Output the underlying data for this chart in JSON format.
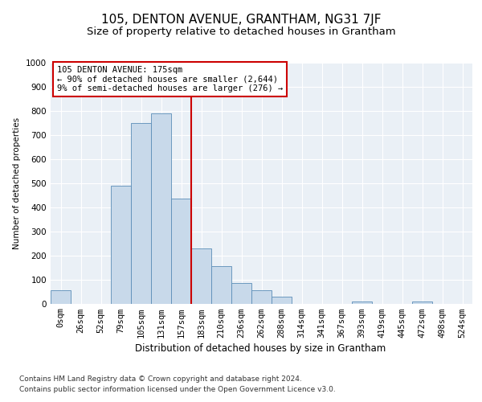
{
  "title": "105, DENTON AVENUE, GRANTHAM, NG31 7JF",
  "subtitle": "Size of property relative to detached houses in Grantham",
  "xlabel": "Distribution of detached houses by size in Grantham",
  "ylabel": "Number of detached properties",
  "footer_line1": "Contains HM Land Registry data © Crown copyright and database right 2024.",
  "footer_line2": "Contains public sector information licensed under the Open Government Licence v3.0.",
  "bin_labels": [
    "0sqm",
    "26sqm",
    "52sqm",
    "79sqm",
    "105sqm",
    "131sqm",
    "157sqm",
    "183sqm",
    "210sqm",
    "236sqm",
    "262sqm",
    "288sqm",
    "314sqm",
    "341sqm",
    "367sqm",
    "393sqm",
    "419sqm",
    "445sqm",
    "472sqm",
    "498sqm",
    "524sqm"
  ],
  "bar_values": [
    55,
    0,
    0,
    490,
    750,
    790,
    435,
    230,
    155,
    85,
    55,
    30,
    0,
    0,
    0,
    10,
    0,
    0,
    10,
    0,
    0
  ],
  "bar_color": "#c8d9ea",
  "bar_edge_color": "#5b8db8",
  "vline_bin_index": 7,
  "vline_color": "#cc0000",
  "vline_label_title": "105 DENTON AVENUE: 175sqm",
  "vline_label_line1": "← 90% of detached houses are smaller (2,644)",
  "vline_label_line2": "9% of semi-detached houses are larger (276) →",
  "annotation_box_color": "#cc0000",
  "ylim": [
    0,
    1000
  ],
  "yticks": [
    0,
    100,
    200,
    300,
    400,
    500,
    600,
    700,
    800,
    900,
    1000
  ],
  "background_color": "#eaf0f6",
  "grid_color": "#ffffff",
  "title_fontsize": 11,
  "subtitle_fontsize": 9.5,
  "xlabel_fontsize": 8.5,
  "ylabel_fontsize": 7.5,
  "tick_fontsize": 7.5,
  "footer_fontsize": 6.5
}
